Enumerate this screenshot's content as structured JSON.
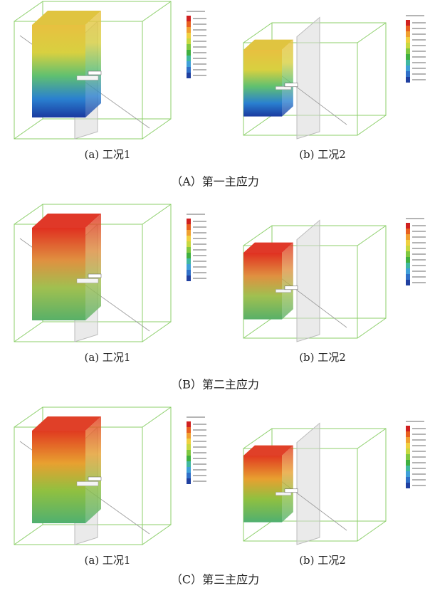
{
  "figure": {
    "groups": [
      {
        "title": "（A）第一主应力",
        "panels": [
          {
            "caption": "(a) 工况1"
          },
          {
            "caption": "(b) 工况2"
          }
        ]
      },
      {
        "title": "（B）第二主应力",
        "panels": [
          {
            "caption": "(a) 工况1"
          },
          {
            "caption": "(b) 工况2"
          }
        ]
      },
      {
        "title": "（C）第三主应力",
        "panels": [
          {
            "caption": "(a) 工况1"
          },
          {
            "caption": "(b) 工况2"
          }
        ]
      }
    ]
  }
}
